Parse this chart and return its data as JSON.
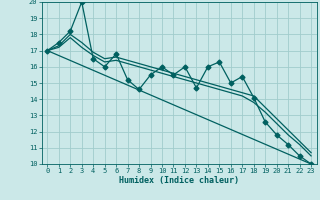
{
  "bg_color": "#cbe8e8",
  "grid_color": "#a0cccc",
  "line_color": "#006060",
  "x_label": "Humidex (Indice chaleur)",
  "xlim": [
    -0.5,
    23.5
  ],
  "ylim": [
    10,
    20
  ],
  "yticks": [
    10,
    11,
    12,
    13,
    14,
    15,
    16,
    17,
    18,
    19,
    20
  ],
  "xticks": [
    0,
    1,
    2,
    3,
    4,
    5,
    6,
    7,
    8,
    9,
    10,
    11,
    12,
    13,
    14,
    15,
    16,
    17,
    18,
    19,
    20,
    21,
    22,
    23
  ],
  "series": [
    {
      "x": [
        0,
        1,
        2,
        3,
        4,
        5,
        6,
        7,
        8,
        9,
        10,
        11,
        12,
        13,
        14,
        15,
        16,
        17,
        18,
        19,
        20,
        21,
        22,
        23
      ],
      "y": [
        17,
        17.5,
        18.2,
        20.0,
        16.5,
        16.0,
        16.8,
        15.2,
        14.6,
        15.5,
        16.0,
        15.5,
        16.0,
        14.7,
        16.0,
        16.3,
        15.0,
        15.4,
        14.1,
        12.6,
        11.8,
        11.2,
        10.5,
        10.0
      ],
      "marker": "D",
      "markersize": 2.5,
      "linewidth": 0.9
    },
    {
      "x": [
        0,
        1,
        2,
        3,
        4,
        5,
        6,
        7,
        8,
        9,
        10,
        11,
        12,
        13,
        14,
        15,
        16,
        17,
        18,
        19,
        20,
        21,
        22,
        23
      ],
      "y": [
        17.0,
        17.3,
        18.0,
        17.5,
        16.9,
        16.5,
        16.6,
        16.4,
        16.2,
        16.0,
        15.8,
        15.6,
        15.4,
        15.2,
        15.0,
        14.8,
        14.6,
        14.4,
        14.2,
        13.5,
        12.8,
        12.1,
        11.4,
        10.7
      ],
      "marker": null,
      "markersize": 0,
      "linewidth": 0.9
    },
    {
      "x": [
        0,
        1,
        2,
        3,
        4,
        5,
        6,
        7,
        8,
        9,
        10,
        11,
        12,
        13,
        14,
        15,
        16,
        17,
        18,
        19,
        20,
        21,
        22,
        23
      ],
      "y": [
        17.0,
        17.2,
        17.8,
        17.2,
        16.7,
        16.3,
        16.4,
        16.2,
        16.0,
        15.8,
        15.6,
        15.4,
        15.2,
        15.0,
        14.8,
        14.6,
        14.4,
        14.2,
        13.8,
        13.2,
        12.5,
        11.8,
        11.2,
        10.5
      ],
      "marker": null,
      "markersize": 0,
      "linewidth": 0.9
    },
    {
      "x": [
        0,
        23
      ],
      "y": [
        17.0,
        10.0
      ],
      "marker": null,
      "markersize": 0,
      "linewidth": 0.9
    }
  ],
  "label_fontsize": 5.0,
  "xlabel_fontsize": 6.0
}
